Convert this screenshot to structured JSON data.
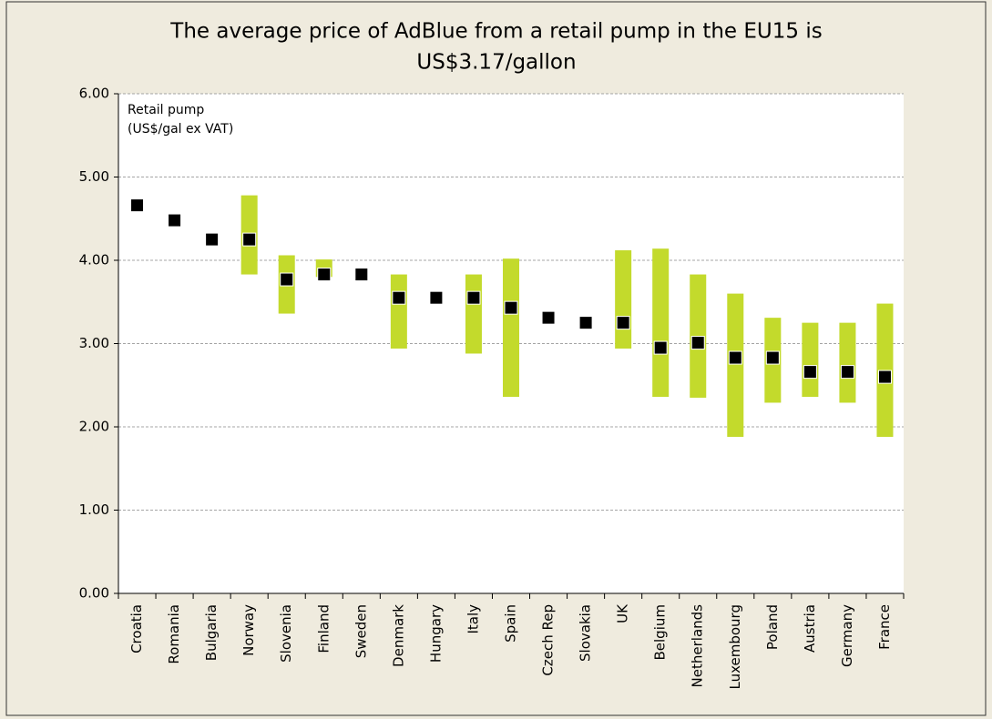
{
  "chart_data": {
    "type": "range_marker",
    "title_lines": [
      "The average price of AdBlue from a retail pump in the EU15 is",
      "US$3.17/gallon"
    ],
    "annotation_lines": [
      "Retail pump",
      "(US$/gal ex VAT)"
    ],
    "categories": [
      "Croatia",
      "Romania",
      "Bulgaria",
      "Norway",
      "Slovenia",
      "Finland",
      "Sweden",
      "Denmark",
      "Hungary",
      "Italy",
      "Spain",
      "Czech Rep",
      "Slovakia",
      "UK",
      "Belgium",
      "Netherlands",
      "Luxembourg",
      "Poland",
      "Austria",
      "Germany",
      "France"
    ],
    "values": [
      4.66,
      4.48,
      4.25,
      4.25,
      3.77,
      3.83,
      3.83,
      3.55,
      3.55,
      3.55,
      3.43,
      3.31,
      3.25,
      3.25,
      2.95,
      3.01,
      2.83,
      2.83,
      2.66,
      2.66,
      2.6
    ],
    "low": [
      null,
      null,
      null,
      3.83,
      3.36,
      3.8,
      null,
      2.94,
      null,
      2.88,
      2.36,
      null,
      null,
      2.94,
      2.36,
      2.35,
      1.88,
      2.29,
      2.36,
      2.29,
      1.88
    ],
    "high": [
      null,
      null,
      null,
      4.78,
      4.06,
      4.01,
      null,
      3.83,
      null,
      3.83,
      4.02,
      null,
      null,
      4.12,
      4.14,
      3.83,
      3.6,
      3.31,
      3.25,
      3.25,
      3.48
    ],
    "range_color": "#c3da2c",
    "marker_color": "#000000",
    "ylim": [
      0,
      6
    ],
    "yticks": [
      {
        "value": 0,
        "label": "0.00"
      },
      {
        "value": 1,
        "label": "1.00"
      },
      {
        "value": 2,
        "label": "2.00"
      },
      {
        "value": 3,
        "label": "3.00"
      },
      {
        "value": 4,
        "label": "4.00"
      },
      {
        "value": 5,
        "label": "5.00"
      },
      {
        "value": 6,
        "label": "6.00"
      }
    ],
    "grid": true
  }
}
